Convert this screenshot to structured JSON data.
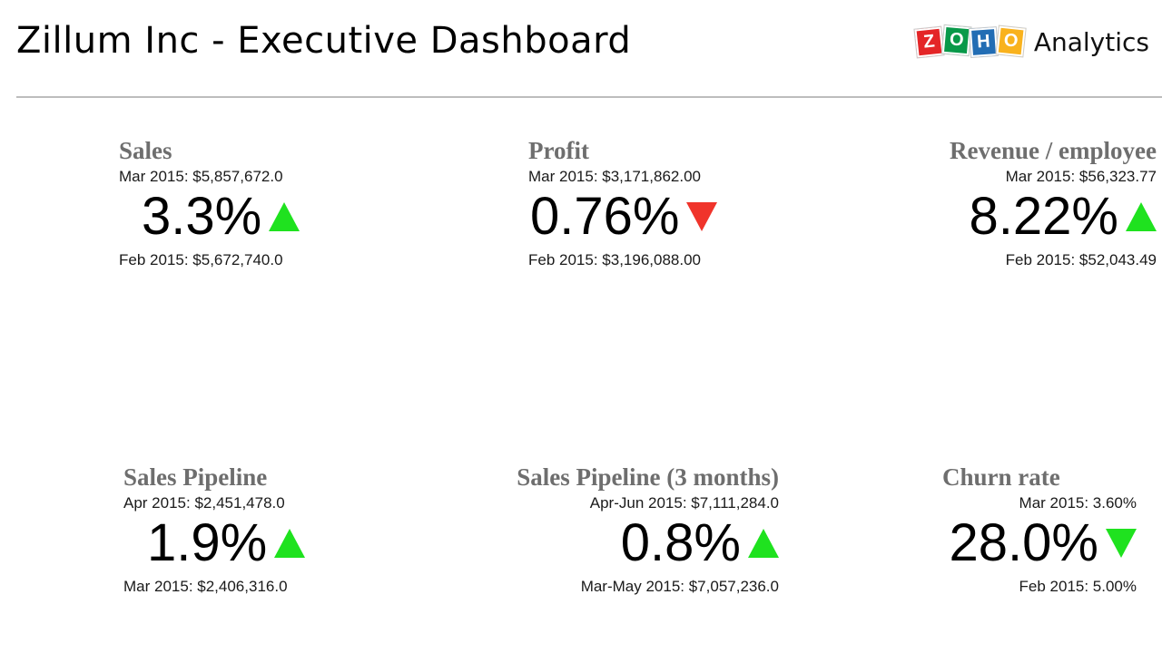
{
  "header": {
    "title": "Zillum Inc - Executive Dashboard",
    "brand_letters": [
      "Z",
      "O",
      "H",
      "O"
    ],
    "brand_letter_colors": [
      "#e42527",
      "#089949",
      "#226db4",
      "#f9b21d"
    ],
    "brand_product": "Analytics"
  },
  "colors": {
    "up": "#1fe21f",
    "down_bad": "#f0342b",
    "down_good": "#1fe21f",
    "title_gray": "#6e6e6e"
  },
  "kpis": [
    {
      "title": "Sales",
      "current": "Mar 2015: $5,857,672.0",
      "change": "3.3%",
      "trend": "up-icon",
      "previous": "Feb 2015: $5,672,740.0"
    },
    {
      "title": "Profit",
      "current": "Mar 2015: $3,171,862.00",
      "change": "0.76%",
      "trend": "down-icon",
      "previous": "Feb 2015: $3,196,088.00"
    },
    {
      "title": "Revenue / employee",
      "current": "Mar 2015: $56,323.77",
      "change": "8.22%",
      "trend": "up-icon",
      "previous": "Feb 2015: $52,043.49"
    },
    {
      "title": "Sales Pipeline",
      "current": "Apr 2015: $2,451,478.0",
      "change": "1.9%",
      "trend": "up-icon",
      "previous": "Mar 2015: $2,406,316.0"
    },
    {
      "title": "Sales Pipeline (3 months)",
      "current": "Apr-Jun 2015: $7,111,284.0",
      "change": "0.8%",
      "trend": "up-icon",
      "previous": "Mar-May 2015: $7,057,236.0"
    },
    {
      "title": "Churn rate",
      "current": "Mar 2015: 3.60%",
      "change": "28.0%",
      "trend": "down-icon",
      "previous": "Feb 2015: 5.00%"
    }
  ]
}
